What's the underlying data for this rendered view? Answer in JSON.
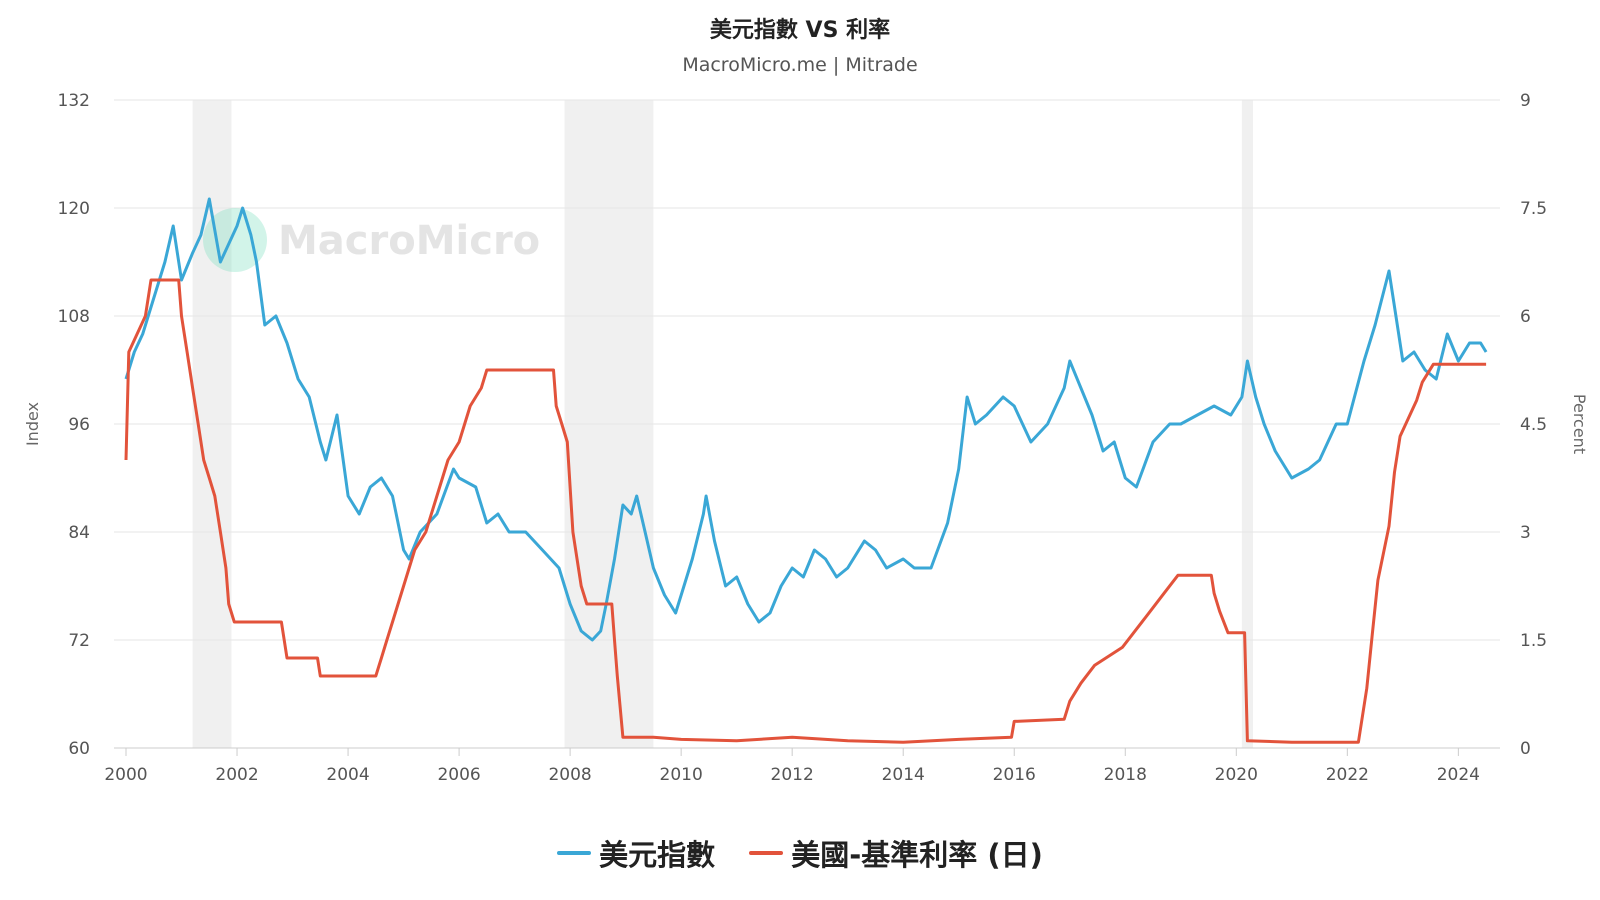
{
  "title": "美元指數 VS 利率",
  "subtitle": "MacroMicro.me | Mitrade",
  "watermark": "MacroMicro",
  "colors": {
    "dxy": "#3aa7d6",
    "rate": "#e2533b",
    "recession": "#f0f0f0",
    "grid": "#e6e6e6"
  },
  "chart_data": {
    "type": "line",
    "x_ticks": [
      "2000",
      "2002",
      "2004",
      "2006",
      "2008",
      "2010",
      "2012",
      "2014",
      "2016",
      "2018",
      "2020",
      "2022",
      "2024"
    ],
    "y_left": {
      "label": "Index",
      "ticks": [
        "60",
        "72",
        "84",
        "96",
        "108",
        "120",
        "132"
      ],
      "range": [
        60,
        132
      ]
    },
    "y_right": {
      "label": "Percent",
      "ticks": [
        "0",
        "1.5",
        "3",
        "4.5",
        "6",
        "7.5",
        "9"
      ],
      "range": [
        0,
        9
      ]
    },
    "recession_bands": [
      [
        2001.2,
        2001.9
      ],
      [
        2007.9,
        2009.5
      ],
      [
        2020.1,
        2020.3
      ]
    ],
    "series": [
      {
        "name": "美元指數",
        "axis": "left",
        "points": [
          [
            2000.0,
            101
          ],
          [
            2000.15,
            104
          ],
          [
            2000.3,
            106
          ],
          [
            2000.5,
            110
          ],
          [
            2000.7,
            114
          ],
          [
            2000.85,
            118
          ],
          [
            2001.0,
            112
          ],
          [
            2001.2,
            115
          ],
          [
            2001.35,
            117
          ],
          [
            2001.5,
            121
          ],
          [
            2001.7,
            114
          ],
          [
            2001.85,
            116
          ],
          [
            2002.0,
            118
          ],
          [
            2002.1,
            120
          ],
          [
            2002.25,
            117
          ],
          [
            2002.35,
            114
          ],
          [
            2002.5,
            107
          ],
          [
            2002.7,
            108
          ],
          [
            2002.9,
            105
          ],
          [
            2003.1,
            101
          ],
          [
            2003.3,
            99
          ],
          [
            2003.5,
            94
          ],
          [
            2003.6,
            92
          ],
          [
            2003.8,
            97
          ],
          [
            2004.0,
            88
          ],
          [
            2004.2,
            86
          ],
          [
            2004.4,
            89
          ],
          [
            2004.6,
            90
          ],
          [
            2004.8,
            88
          ],
          [
            2005.0,
            82
          ],
          [
            2005.1,
            81
          ],
          [
            2005.3,
            84
          ],
          [
            2005.6,
            86
          ],
          [
            2005.9,
            91
          ],
          [
            2006.0,
            90
          ],
          [
            2006.3,
            89
          ],
          [
            2006.5,
            85
          ],
          [
            2006.7,
            86
          ],
          [
            2006.9,
            84
          ],
          [
            2007.2,
            84
          ],
          [
            2007.5,
            82
          ],
          [
            2007.8,
            80
          ],
          [
            2008.0,
            76
          ],
          [
            2008.2,
            73
          ],
          [
            2008.4,
            72
          ],
          [
            2008.55,
            73
          ],
          [
            2008.65,
            76
          ],
          [
            2008.8,
            81
          ],
          [
            2008.95,
            87
          ],
          [
            2009.1,
            86
          ],
          [
            2009.2,
            88
          ],
          [
            2009.35,
            84
          ],
          [
            2009.5,
            80
          ],
          [
            2009.7,
            77
          ],
          [
            2009.9,
            75
          ],
          [
            2010.0,
            77
          ],
          [
            2010.2,
            81
          ],
          [
            2010.4,
            86
          ],
          [
            2010.45,
            88
          ],
          [
            2010.6,
            83
          ],
          [
            2010.8,
            78
          ],
          [
            2011.0,
            79
          ],
          [
            2011.2,
            76
          ],
          [
            2011.4,
            74
          ],
          [
            2011.6,
            75
          ],
          [
            2011.8,
            78
          ],
          [
            2012.0,
            80
          ],
          [
            2012.2,
            79
          ],
          [
            2012.4,
            82
          ],
          [
            2012.6,
            81
          ],
          [
            2012.8,
            79
          ],
          [
            2013.0,
            80
          ],
          [
            2013.3,
            83
          ],
          [
            2013.5,
            82
          ],
          [
            2013.7,
            80
          ],
          [
            2014.0,
            81
          ],
          [
            2014.2,
            80
          ],
          [
            2014.5,
            80
          ],
          [
            2014.8,
            85
          ],
          [
            2015.0,
            91
          ],
          [
            2015.15,
            99
          ],
          [
            2015.3,
            96
          ],
          [
            2015.5,
            97
          ],
          [
            2015.8,
            99
          ],
          [
            2016.0,
            98
          ],
          [
            2016.3,
            94
          ],
          [
            2016.6,
            96
          ],
          [
            2016.9,
            100
          ],
          [
            2017.0,
            103
          ],
          [
            2017.2,
            100
          ],
          [
            2017.4,
            97
          ],
          [
            2017.6,
            93
          ],
          [
            2017.8,
            94
          ],
          [
            2018.0,
            90
          ],
          [
            2018.2,
            89
          ],
          [
            2018.5,
            94
          ],
          [
            2018.8,
            96
          ],
          [
            2019.0,
            96
          ],
          [
            2019.3,
            97
          ],
          [
            2019.6,
            98
          ],
          [
            2019.9,
            97
          ],
          [
            2020.1,
            99
          ],
          [
            2020.2,
            103
          ],
          [
            2020.35,
            99
          ],
          [
            2020.5,
            96
          ],
          [
            2020.7,
            93
          ],
          [
            2021.0,
            90
          ],
          [
            2021.3,
            91
          ],
          [
            2021.5,
            92
          ],
          [
            2021.8,
            96
          ],
          [
            2022.0,
            96
          ],
          [
            2022.3,
            103
          ],
          [
            2022.5,
            107
          ],
          [
            2022.75,
            113
          ],
          [
            2022.9,
            107
          ],
          [
            2023.0,
            103
          ],
          [
            2023.2,
            104
          ],
          [
            2023.4,
            102
          ],
          [
            2023.6,
            101
          ],
          [
            2023.8,
            106
          ],
          [
            2024.0,
            103
          ],
          [
            2024.2,
            105
          ],
          [
            2024.4,
            105
          ],
          [
            2024.5,
            104
          ]
        ]
      },
      {
        "name": "美國-基準利率 (日)",
        "axis": "right",
        "points": [
          [
            2000.0,
            4.0
          ],
          [
            2000.05,
            5.5
          ],
          [
            2000.2,
            5.75
          ],
          [
            2000.35,
            6.0
          ],
          [
            2000.45,
            6.5
          ],
          [
            2000.95,
            6.5
          ],
          [
            2001.0,
            6.0
          ],
          [
            2001.1,
            5.5
          ],
          [
            2001.2,
            5.0
          ],
          [
            2001.3,
            4.5
          ],
          [
            2001.4,
            4.0
          ],
          [
            2001.5,
            3.75
          ],
          [
            2001.6,
            3.5
          ],
          [
            2001.7,
            3.0
          ],
          [
            2001.8,
            2.5
          ],
          [
            2001.85,
            2.0
          ],
          [
            2001.95,
            1.75
          ],
          [
            2002.8,
            1.75
          ],
          [
            2002.9,
            1.25
          ],
          [
            2003.45,
            1.25
          ],
          [
            2003.5,
            1.0
          ],
          [
            2004.5,
            1.0
          ],
          [
            2004.6,
            1.25
          ],
          [
            2004.7,
            1.5
          ],
          [
            2004.8,
            1.75
          ],
          [
            2005.0,
            2.25
          ],
          [
            2005.2,
            2.75
          ],
          [
            2005.4,
            3.0
          ],
          [
            2005.6,
            3.5
          ],
          [
            2005.8,
            4.0
          ],
          [
            2006.0,
            4.25
          ],
          [
            2006.2,
            4.75
          ],
          [
            2006.4,
            5.0
          ],
          [
            2006.5,
            5.25
          ],
          [
            2007.7,
            5.25
          ],
          [
            2007.75,
            4.75
          ],
          [
            2007.85,
            4.5
          ],
          [
            2007.95,
            4.25
          ],
          [
            2008.05,
            3.0
          ],
          [
            2008.2,
            2.25
          ],
          [
            2008.3,
            2.0
          ],
          [
            2008.75,
            2.0
          ],
          [
            2008.8,
            1.5
          ],
          [
            2008.85,
            1.0
          ],
          [
            2008.95,
            0.15
          ],
          [
            2009.5,
            0.15
          ],
          [
            2010.0,
            0.12
          ],
          [
            2011.0,
            0.1
          ],
          [
            2012.0,
            0.15
          ],
          [
            2013.0,
            0.1
          ],
          [
            2014.0,
            0.08
          ],
          [
            2015.0,
            0.12
          ],
          [
            2015.95,
            0.15
          ],
          [
            2016.0,
            0.37
          ],
          [
            2016.9,
            0.4
          ],
          [
            2017.0,
            0.65
          ],
          [
            2017.2,
            0.9
          ],
          [
            2017.45,
            1.15
          ],
          [
            2017.95,
            1.4
          ],
          [
            2018.2,
            1.65
          ],
          [
            2018.45,
            1.9
          ],
          [
            2018.7,
            2.15
          ],
          [
            2018.95,
            2.4
          ],
          [
            2019.55,
            2.4
          ],
          [
            2019.6,
            2.15
          ],
          [
            2019.7,
            1.9
          ],
          [
            2019.85,
            1.6
          ],
          [
            2020.15,
            1.6
          ],
          [
            2020.2,
            0.1
          ],
          [
            2021.0,
            0.08
          ],
          [
            2022.2,
            0.08
          ],
          [
            2022.25,
            0.33
          ],
          [
            2022.35,
            0.83
          ],
          [
            2022.45,
            1.58
          ],
          [
            2022.55,
            2.33
          ],
          [
            2022.75,
            3.08
          ],
          [
            2022.85,
            3.83
          ],
          [
            2022.95,
            4.33
          ],
          [
            2023.1,
            4.58
          ],
          [
            2023.25,
            4.83
          ],
          [
            2023.35,
            5.08
          ],
          [
            2023.55,
            5.33
          ],
          [
            2024.5,
            5.33
          ]
        ]
      }
    ]
  }
}
